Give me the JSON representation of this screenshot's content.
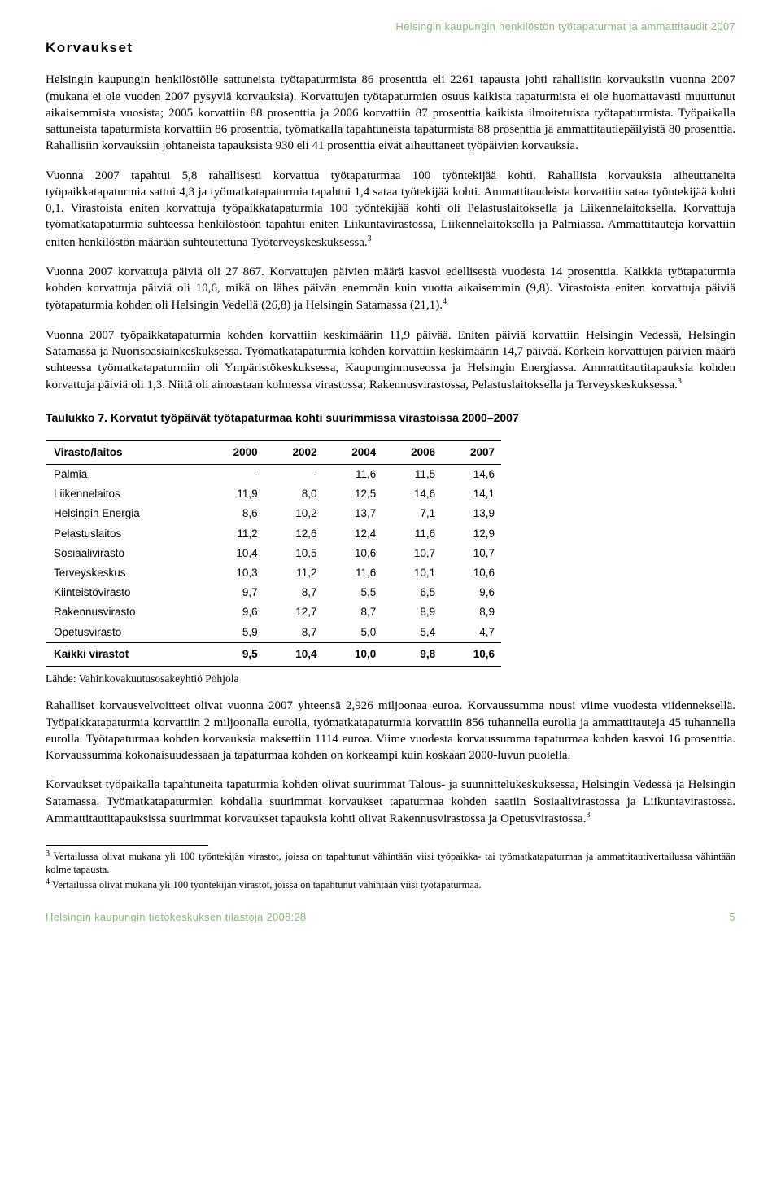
{
  "header": {
    "runningTitle": "Helsingin kaupungin henkilöstön työtapaturmat ja ammattitaudit 2007"
  },
  "sectionTitle": "Korvaukset",
  "paragraphs": {
    "p1": "Helsingin kaupungin henkilöstölle sattuneista työtapaturmista 86 prosenttia eli 2261 tapausta johti rahallisiin korvauksiin vuonna 2007 (mukana ei ole vuoden 2007 pysyviä korvauksia). Korvattujen työtapaturmien osuus kaikista tapaturmista ei ole huomattavasti muuttunut aikaisemmista vuosista; 2005 korvattiin 88 prosenttia ja 2006 korvattiin 87 prosenttia kaikista ilmoitetuista työtapaturmista. Työpaikalla sattuneista tapaturmista korvattiin 86 prosenttia, työmatkalla tapahtuneista tapaturmista 88 prosenttia ja ammattitautiepäilyistä 80 prosenttia. Rahallisiin korvauksiin johtaneista tapauksista 930 eli 41 prosenttia eivät aiheuttaneet työpäivien korvauksia.",
    "p2": "Vuonna 2007 tapahtui 5,8 rahallisesti korvattua työtapaturmaa 100 työntekijää kohti. Rahallisia korvauksia aiheuttaneita työpaikkatapaturmia sattui 4,3 ja työmatkatapaturmia tapahtui 1,4 sataa työtekijää kohti. Ammattitaudeista korvattiin sataa työntekijää kohti 0,1. Virastoista eniten korvattuja työpaikkatapaturmia 100 työntekijää kohti oli Pelastuslaitoksella ja Liikennelaitoksella. Korvattuja työmatkatapaturmia suhteessa henkilöstöön tapahtui eniten Liikuntavirastossa, Liikennelaitoksella ja Palmiassa. Ammattitauteja korvattiin eniten henkilöstön määrään suhteutettuna Työterveyskeskuksessa.",
    "p2_sup": "3",
    "p3": "Vuonna 2007 korvattuja päiviä oli 27 867. Korvattujen päivien määrä kasvoi edellisestä vuodesta 14 prosenttia. Kaikkia työtapaturmia kohden korvattuja päiviä oli 10,6, mikä on lähes päivän enemmän kuin vuotta aikaisemmin (9,8). Virastoista eniten korvattuja päiviä työtapaturmia kohden oli Helsingin Vedellä (26,8) ja Helsingin Satamassa (21,1).",
    "p3_sup": "4",
    "p4": "Vuonna 2007 työpaikkatapaturmia kohden korvattiin keskimäärin 11,9 päivää. Eniten päiviä korvattiin Helsingin Vedessä, Helsingin Satamassa ja Nuorisoasiainkeskuksessa. Työmatkatapaturmia kohden korvattiin keskimäärin 14,7 päivää. Korkein korvattujen päivien määrä suhteessa työmatkatapaturmiin oli Ympäristökeskuksessa, Kaupunginmuseossa ja Helsingin Energiassa. Ammattitautitapauksia kohden korvattuja päiviä oli 1,3. Niitä oli ainoastaan kolmessa virastossa; Rakennusvirastossa, Pelastuslaitoksella ja Terveyskeskuksessa.",
    "p4_sup": "3",
    "p5": "Rahalliset korvausvelvoitteet olivat vuonna 2007 yhteensä 2,926 miljoonaa euroa. Korvaussumma nousi viime vuodesta viidenneksellä. Työpaikkatapaturmia korvattiin 2 miljoonalla eurolla, työmatkatapaturmia korvattiin 856 tuhannella eurolla ja ammattitauteja 45 tuhannella eurolla. Työtapaturmaa kohden korvauksia maksettiin 1114 euroa. Viime vuodesta korvaussumma tapaturmaa kohden kasvoi 16 prosenttia. Korvaussumma kokonaisuudessaan ja tapaturmaa kohden on korkeampi kuin koskaan 2000-luvun puolella.",
    "p6": "Korvaukset työpaikalla tapahtuneita tapaturmia kohden olivat suurimmat Talous- ja suunnittelukeskuksessa, Helsingin Vedessä ja Helsingin Satamassa. Työmatkatapaturmien kohdalla suurimmat korvaukset tapaturmaa kohden saatiin Sosiaalivirastossa ja Liikuntavirastossa. Ammattitautitapauksissa suurimmat korvaukset tapauksia kohti olivat Rakennusvirastossa ja Opetusvirastossa.",
    "p6_sup": "3"
  },
  "table": {
    "caption": "Taulukko 7. Korvatut työpäivät työtapaturmaa kohti suurimmissa virastoissa 2000–2007",
    "columns": [
      "Virasto/laitos",
      "2000",
      "2002",
      "2004",
      "2006",
      "2007"
    ],
    "rows": [
      [
        "Palmia",
        "-",
        "-",
        "11,6",
        "11,5",
        "14,6"
      ],
      [
        "Liikennelaitos",
        "11,9",
        "8,0",
        "12,5",
        "14,6",
        "14,1"
      ],
      [
        "Helsingin Energia",
        "8,6",
        "10,2",
        "13,7",
        "7,1",
        "13,9"
      ],
      [
        "Pelastuslaitos",
        "11,2",
        "12,6",
        "12,4",
        "11,6",
        "12,9"
      ],
      [
        "Sosiaalivirasto",
        "10,4",
        "10,5",
        "10,6",
        "10,7",
        "10,7"
      ],
      [
        "Terveyskeskus",
        "10,3",
        "11,2",
        "11,6",
        "10,1",
        "10,6"
      ],
      [
        "Kiinteistövirasto",
        "9,7",
        "8,7",
        "5,5",
        "6,5",
        "9,6"
      ],
      [
        "Rakennusvirasto",
        "9,6",
        "12,7",
        "8,7",
        "8,9",
        "8,9"
      ],
      [
        "Opetusvirasto",
        "5,9",
        "8,7",
        "5,0",
        "5,4",
        "4,7"
      ]
    ],
    "totalRow": [
      "Kaikki virastot",
      "9,5",
      "10,4",
      "10,0",
      "9,8",
      "10,6"
    ]
  },
  "tableSource": "Lähde: Vahinkovakuutusosakeyhtiö Pohjola",
  "footnotes": {
    "f3": "Vertailussa olivat mukana yli 100 työntekijän virastot, joissa on tapahtunut vähintään viisi työpaikka- tai työmatkatapaturmaa ja ammattitautivertailussa vähintään kolme tapausta.",
    "f3_num": "3",
    "f4": "Vertailussa olivat mukana yli 100 työntekijän virastot, joissa on tapahtunut vähintään viisi työtapaturmaa.",
    "f4_num": "4"
  },
  "footer": {
    "left": "Helsingin kaupungin tietokeskuksen tilastoja 2008:28",
    "pageNum": "5"
  }
}
